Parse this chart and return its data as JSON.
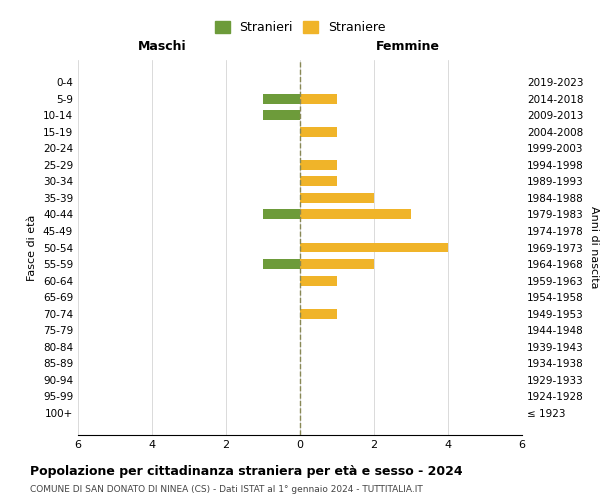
{
  "age_groups": [
    "100+",
    "95-99",
    "90-94",
    "85-89",
    "80-84",
    "75-79",
    "70-74",
    "65-69",
    "60-64",
    "55-59",
    "50-54",
    "45-49",
    "40-44",
    "35-39",
    "30-34",
    "25-29",
    "20-24",
    "15-19",
    "10-14",
    "5-9",
    "0-4"
  ],
  "birth_years": [
    "≤ 1923",
    "1924-1928",
    "1929-1933",
    "1934-1938",
    "1939-1943",
    "1944-1948",
    "1949-1953",
    "1954-1958",
    "1959-1963",
    "1964-1968",
    "1969-1973",
    "1974-1978",
    "1979-1983",
    "1984-1988",
    "1989-1993",
    "1994-1998",
    "1999-2003",
    "2004-2008",
    "2009-2013",
    "2014-2018",
    "2019-2023"
  ],
  "males": [
    0,
    0,
    0,
    0,
    0,
    0,
    0,
    0,
    0,
    1,
    0,
    0,
    1,
    0,
    0,
    0,
    0,
    0,
    1,
    1,
    0
  ],
  "females": [
    0,
    0,
    0,
    0,
    0,
    0,
    1,
    0,
    1,
    2,
    4,
    0,
    3,
    2,
    1,
    1,
    0,
    1,
    0,
    1,
    0
  ],
  "male_color": "#6d9b3a",
  "female_color": "#f0b429",
  "title": "Popolazione per cittadinanza straniera per età e sesso - 2024",
  "subtitle": "COMUNE DI SAN DONATO DI NINEA (CS) - Dati ISTAT al 1° gennaio 2024 - TUTTITALIA.IT",
  "xlabel_left": "Maschi",
  "xlabel_right": "Femmine",
  "ylabel_left": "Fasce di età",
  "ylabel_right": "Anni di nascita",
  "legend_male": "Stranieri",
  "legend_female": "Straniere",
  "xlim": 6,
  "background_color": "#ffffff",
  "grid_color": "#cccccc"
}
